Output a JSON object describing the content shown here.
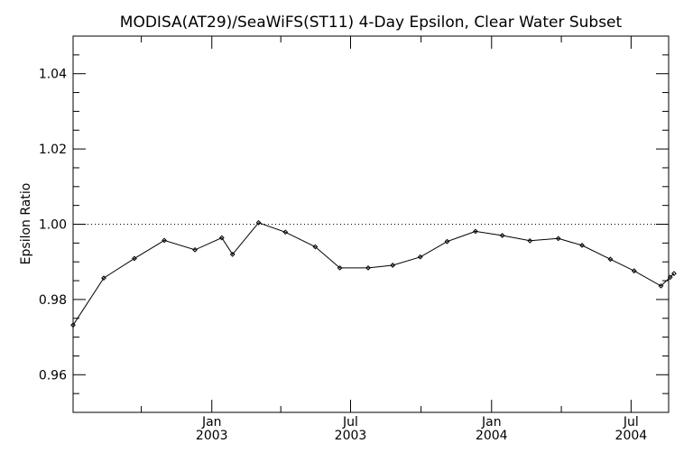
{
  "chart_data": {
    "type": "line",
    "title": "MODISA(AT29)/SeaWiFS(ST11) 4-Day Epsilon, Clear Water Subset",
    "xlabel": "",
    "ylabel": "Epsilon Ratio",
    "xlim": [
      "2002-07-04",
      "2004-08-18"
    ],
    "ylim": [
      0.95,
      1.05
    ],
    "reference_line": 1.0,
    "y_ticks": [
      {
        "value": 0.96,
        "label": "0.96"
      },
      {
        "value": 0.98,
        "label": "0.98"
      },
      {
        "value": 1.0,
        "label": "1.00"
      },
      {
        "value": 1.02,
        "label": "1.02"
      },
      {
        "value": 1.04,
        "label": "1.04"
      }
    ],
    "x_ticks": [
      {
        "date": "2003-01-01",
        "line1": "Jan",
        "line2": "2003"
      },
      {
        "date": "2003-07-01",
        "line1": "Jul",
        "line2": "2003"
      },
      {
        "date": "2004-01-01",
        "line1": "Jan",
        "line2": "2004"
      },
      {
        "date": "2004-07-01",
        "line1": "Jul",
        "line2": "2004"
      }
    ],
    "x_minor_ticks": [
      "2002-10-01",
      "2003-04-01",
      "2003-10-01",
      "2004-04-01"
    ],
    "series": [
      {
        "color": "#000000",
        "points": [
          {
            "x": "2002-07-04",
            "y": 0.9732
          },
          {
            "x": "2002-08-13",
            "y": 0.9857
          },
          {
            "x": "2002-09-22",
            "y": 0.9909
          },
          {
            "x": "2002-10-31",
            "y": 0.9957
          },
          {
            "x": "2002-12-10",
            "y": 0.9932
          },
          {
            "x": "2003-01-14",
            "y": 0.9964
          },
          {
            "x": "2003-01-28",
            "y": 0.992
          },
          {
            "x": "2003-03-03",
            "y": 1.0004
          },
          {
            "x": "2003-04-07",
            "y": 0.9979
          },
          {
            "x": "2003-05-16",
            "y": 0.994
          },
          {
            "x": "2003-06-17",
            "y": 0.9884
          },
          {
            "x": "2003-07-24",
            "y": 0.9884
          },
          {
            "x": "2003-08-25",
            "y": 0.9891
          },
          {
            "x": "2003-09-30",
            "y": 0.9913
          },
          {
            "x": "2003-11-04",
            "y": 0.9954
          },
          {
            "x": "2003-12-11",
            "y": 0.9981
          },
          {
            "x": "2004-01-15",
            "y": 0.997
          },
          {
            "x": "2004-02-20",
            "y": 0.9956
          },
          {
            "x": "2004-03-28",
            "y": 0.9962
          },
          {
            "x": "2004-04-28",
            "y": 0.9944
          },
          {
            "x": "2004-06-04",
            "y": 0.9907
          },
          {
            "x": "2004-07-05",
            "y": 0.9876
          },
          {
            "x": "2004-08-09",
            "y": 0.9836
          },
          {
            "x": "2004-08-21",
            "y": 0.9859
          },
          {
            "x": "2004-08-26",
            "y": 0.9869
          }
        ]
      }
    ],
    "grid": false,
    "legend": "none"
  }
}
